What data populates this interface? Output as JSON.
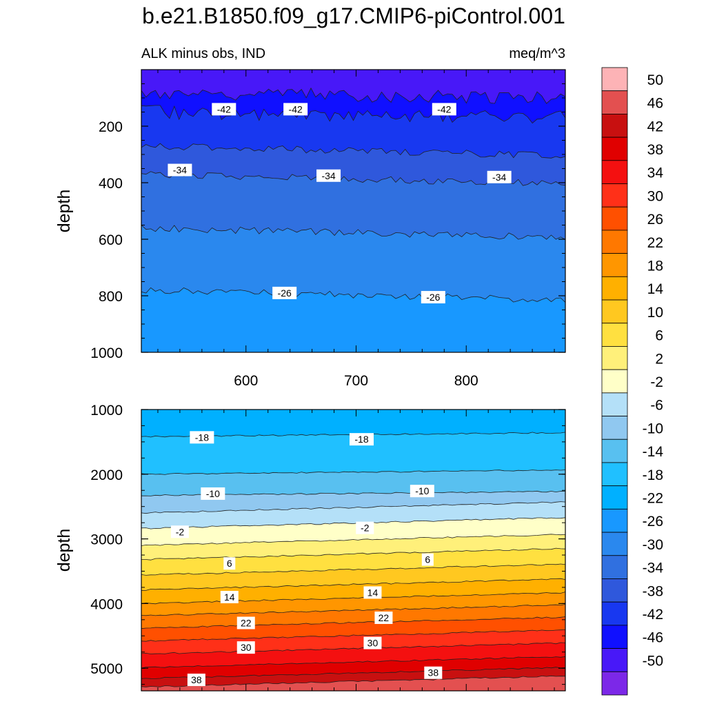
{
  "title": "b.e21.B1850.f09_g17.CMIP6-piControl.001",
  "subtitle_left": "ALK minus obs, IND",
  "subtitle_right": "meq/m^3",
  "chart_data": [
    {
      "type": "contour",
      "panel": "upper",
      "ylabel": "depth",
      "xlabel": "",
      "xlim": [
        505,
        890
      ],
      "ylim": [
        0,
        1000
      ],
      "y_reversed": true,
      "x_ticks": [
        600,
        700,
        800
      ],
      "y_ticks": [
        200,
        400,
        600,
        800,
        1000
      ],
      "bands": [
        {
          "level_range": [
            -50,
            -46
          ],
          "depth_range": [
            0,
            80
          ]
        },
        {
          "level_range": [
            -46,
            -42
          ],
          "depth_range": [
            80,
            150
          ]
        },
        {
          "level_range": [
            -42,
            -38
          ],
          "depth_range": [
            150,
            270
          ]
        },
        {
          "level_range": [
            -38,
            -34
          ],
          "depth_range": [
            270,
            370
          ]
        },
        {
          "level_range": [
            -34,
            -30
          ],
          "depth_range": [
            370,
            560
          ]
        },
        {
          "level_range": [
            -30,
            -26
          ],
          "depth_range": [
            560,
            780
          ]
        },
        {
          "level_range": [
            -26,
            -22
          ],
          "depth_range": [
            780,
            1000
          ]
        }
      ],
      "contour_labels": [
        {
          "text": "-42",
          "x": 580,
          "depth": 140
        },
        {
          "text": "-42",
          "x": 645,
          "depth": 140
        },
        {
          "text": "-42",
          "x": 780,
          "depth": 140
        },
        {
          "text": "-34",
          "x": 540,
          "depth": 355
        },
        {
          "text": "-34",
          "x": 675,
          "depth": 375
        },
        {
          "text": "-34",
          "x": 830,
          "depth": 380
        },
        {
          "text": "-26",
          "x": 635,
          "depth": 790
        },
        {
          "text": "-26",
          "x": 770,
          "depth": 805
        }
      ]
    },
    {
      "type": "contour",
      "panel": "lower",
      "ylabel": "depth",
      "xlabel": "",
      "xlim": [
        505,
        890
      ],
      "ylim": [
        1000,
        5350
      ],
      "y_reversed": true,
      "y_ticks": [
        1000,
        2000,
        3000,
        4000,
        5000
      ],
      "bands": [
        {
          "level_range": [
            -22,
            -18
          ],
          "depth_range": [
            1000,
            1420
          ]
        },
        {
          "level_range": [
            -18,
            -14
          ],
          "depth_range": [
            1420,
            2000
          ]
        },
        {
          "level_range": [
            -14,
            -10
          ],
          "depth_range": [
            2000,
            2330
          ]
        },
        {
          "level_range": [
            -10,
            -6
          ],
          "depth_range": [
            2330,
            2600
          ]
        },
        {
          "level_range": [
            -6,
            -2
          ],
          "depth_range": [
            2600,
            2840
          ]
        },
        {
          "level_range": [
            -2,
            2
          ],
          "depth_range": [
            2840,
            3100
          ]
        },
        {
          "level_range": [
            2,
            6
          ],
          "depth_range": [
            3100,
            3320
          ]
        },
        {
          "level_range": [
            6,
            10
          ],
          "depth_range": [
            3320,
            3560
          ]
        },
        {
          "level_range": [
            10,
            14
          ],
          "depth_range": [
            3560,
            3790
          ]
        },
        {
          "level_range": [
            14,
            18
          ],
          "depth_range": [
            3790,
            4000
          ]
        },
        {
          "level_range": [
            18,
            22
          ],
          "depth_range": [
            4000,
            4190
          ]
        },
        {
          "level_range": [
            22,
            26
          ],
          "depth_range": [
            4190,
            4380
          ]
        },
        {
          "level_range": [
            26,
            30
          ],
          "depth_range": [
            4380,
            4580
          ]
        },
        {
          "level_range": [
            30,
            34
          ],
          "depth_range": [
            4580,
            4780
          ]
        },
        {
          "level_range": [
            34,
            38
          ],
          "depth_range": [
            4780,
            4990
          ]
        },
        {
          "level_range": [
            38,
            42
          ],
          "depth_range": [
            4990,
            5160
          ]
        },
        {
          "level_range": [
            42,
            46
          ],
          "depth_range": [
            5160,
            5290
          ]
        },
        {
          "level_range": [
            46,
            50
          ],
          "depth_range": [
            5290,
            5350
          ]
        }
      ],
      "contour_labels": [
        {
          "text": "-18",
          "x": 560,
          "depth": 1430
        },
        {
          "text": "-18",
          "x": 705,
          "depth": 1460
        },
        {
          "text": "-10",
          "x": 570,
          "depth": 2300
        },
        {
          "text": "-10",
          "x": 760,
          "depth": 2260
        },
        {
          "text": "-2",
          "x": 540,
          "depth": 2890
        },
        {
          "text": "-2",
          "x": 708,
          "depth": 2830
        },
        {
          "text": "6",
          "x": 585,
          "depth": 3380
        },
        {
          "text": "6",
          "x": 765,
          "depth": 3320
        },
        {
          "text": "14",
          "x": 585,
          "depth": 3900
        },
        {
          "text": "14",
          "x": 715,
          "depth": 3830
        },
        {
          "text": "22",
          "x": 600,
          "depth": 4300
        },
        {
          "text": "22",
          "x": 725,
          "depth": 4220
        },
        {
          "text": "30",
          "x": 600,
          "depth": 4680
        },
        {
          "text": "30",
          "x": 715,
          "depth": 4610
        },
        {
          "text": "38",
          "x": 555,
          "depth": 5180
        },
        {
          "text": "38",
          "x": 770,
          "depth": 5070
        }
      ]
    }
  ],
  "colorbar": {
    "labels": [
      "50",
      "46",
      "42",
      "38",
      "34",
      "30",
      "26",
      "22",
      "18",
      "14",
      "10",
      "6",
      "2",
      "-2",
      "-6",
      "-10",
      "-14",
      "-18",
      "-22",
      "-26",
      "-30",
      "-34",
      "-38",
      "-42",
      "-46",
      "-50"
    ],
    "colors": [
      "#fdb3b6",
      "#e35050",
      "#c81010",
      "#e00000",
      "#f41010",
      "#ff3018",
      "#ff5000",
      "#ff7800",
      "#ff9600",
      "#ffb000",
      "#ffc820",
      "#ffe040",
      "#fff07a",
      "#ffffc8",
      "#b4e0f8",
      "#90c8f0",
      "#58c0f0",
      "#20c0ff",
      "#00b0ff",
      "#1898ff",
      "#2a88ee",
      "#3070e0",
      "#2f58dc",
      "#1838f0",
      "#1010ff",
      "#4818f8",
      "#7c28e8"
    ]
  }
}
